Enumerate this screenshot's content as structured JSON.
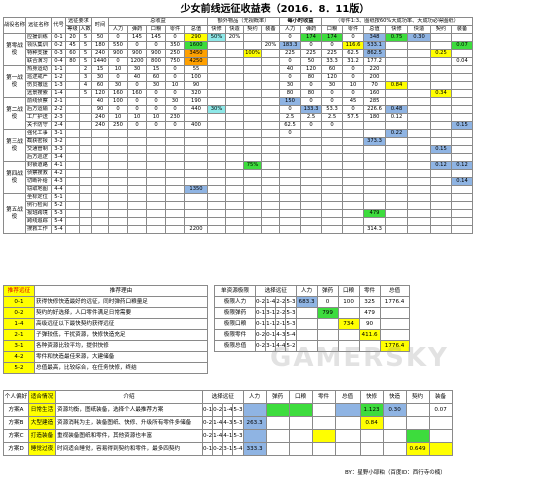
{
  "title": "少女前线远征收益表（2016．8．11版）",
  "main_table": {
    "header_top": [
      "战役名称",
      "远征名称",
      "代号",
      "远征要求",
      "",
      "时间",
      "总收益",
      "额外物品",
      "每小时收益",
      "总值",
      "筹奖比",
      "",
      ""
    ],
    "group_labels": {
      "req": "远征要求",
      "total": "总收益",
      "extra": "额外物品（无视概率）",
      "hourly": "每小时收益",
      "note": "（零件1:3、图纸按60%大成功率、大成功必得图纸）"
    },
    "header_sub": [
      "等级",
      "人数",
      "",
      "人力",
      "弹药",
      "口粮",
      "零件",
      "快修",
      "快造",
      "契约",
      "装备",
      "人力",
      "弹药",
      "口粮",
      "零件",
      "总值",
      "快修",
      "快造",
      "契约",
      "装备"
    ],
    "rows": [
      {
        "campaign": "第零战役",
        "name": "应援训练",
        "code": "0-1",
        "lv": "20",
        "ppl": "5",
        "time": "50",
        "p": "0",
        "a": "145",
        "r": "145",
        "s": "0",
        "total": "290",
        "e1": "50%",
        "e2": "20%",
        "e3": "",
        "e4": "",
        "h1": "0",
        "h2": "174",
        "h3": "174",
        "h4": "0",
        "hv": "348",
        "h5": "0.75",
        "h6": "0.30",
        "h7": "",
        "h8": ""
      },
      {
        "campaign": "",
        "name": "领队集训",
        "code": "0-2",
        "lv": "45",
        "ppl": "5",
        "time": "180",
        "p": "550",
        "a": "0",
        "r": "0",
        "s": "350",
        "total": "1600",
        "e1": "",
        "e2": "",
        "e3": "",
        "e4": "20%",
        "h1": "183.3",
        "h2": "0",
        "h3": "0",
        "h4": "116.6",
        "hv": "533.1",
        "h5": "",
        "h6": "",
        "h7": "",
        "h8": "0.07"
      },
      {
        "campaign": "",
        "name": "特种支援",
        "code": "0-3",
        "lv": "60",
        "ppl": "5",
        "time": "240",
        "p": "900",
        "a": "900",
        "r": "900",
        "s": "250",
        "total": "3450",
        "e1": "",
        "e2": "",
        "e3": "100%",
        "e4": "",
        "h1": "225",
        "h2": "225",
        "h3": "225",
        "h4": "62.5",
        "hv": "862.5",
        "h5": "",
        "h6": "",
        "h7": "0.25",
        "h8": ""
      },
      {
        "campaign": "",
        "name": "联合演习",
        "code": "0-4",
        "lv": "80",
        "ppl": "5",
        "time": "1440",
        "p": "0",
        "a": "1200",
        "r": "800",
        "s": "750",
        "total": "4250",
        "e1": "",
        "e2": "",
        "e3": "",
        "e4": "",
        "h1": "0",
        "h2": "50",
        "h3": "33.3",
        "h4": "31.2",
        "hv": "177.2",
        "h5": "",
        "h6": "",
        "h7": "",
        "h8": "0.04"
      },
      {
        "campaign": "第一战役",
        "name": "热身运动",
        "code": "1-1",
        "lv": "",
        "ppl": "2",
        "time": "15",
        "p": "10",
        "a": "30",
        "r": "15",
        "s": "0",
        "total": "55",
        "e1": "",
        "e2": "",
        "e3": "",
        "e4": "",
        "h1": "40",
        "h2": "120",
        "h3": "60",
        "h4": "0",
        "hv": "220",
        "h5": "",
        "h6": "",
        "h7": "",
        "h8": ""
      },
      {
        "campaign": "",
        "name": "巡逻戒严",
        "code": "1-2",
        "lv": "",
        "ppl": "3",
        "time": "30",
        "p": "0",
        "a": "40",
        "r": "60",
        "s": "0",
        "total": "100",
        "e1": "",
        "e2": "",
        "e3": "",
        "e4": "",
        "h1": "0",
        "h2": "80",
        "h3": "120",
        "h4": "0",
        "hv": "200",
        "h5": "",
        "h6": "",
        "h7": "",
        "h8": ""
      },
      {
        "campaign": "",
        "name": "伤员撤运",
        "code": "1-3",
        "lv": "",
        "ppl": "4",
        "time": "60",
        "p": "30",
        "a": "0",
        "r": "30",
        "s": "10",
        "total": "90",
        "e1": "",
        "e2": "",
        "e3": "",
        "e4": "",
        "h1": "30",
        "h2": "0",
        "h3": "30",
        "h4": "10",
        "hv": "70",
        "h5": "0.84",
        "h6": "",
        "h7": "",
        "h8": ""
      },
      {
        "campaign": "",
        "name": "远景搜索",
        "code": "1-4",
        "lv": "",
        "ppl": "5",
        "time": "120",
        "p": "160",
        "a": "160",
        "r": "0",
        "s": "0",
        "total": "320",
        "e1": "",
        "e2": "",
        "e3": "",
        "e4": "",
        "h1": "80",
        "h2": "80",
        "h3": "0",
        "h4": "0",
        "hv": "160",
        "h5": "",
        "h6": "",
        "h7": "0.34",
        "h8": ""
      },
      {
        "campaign": "第二战役",
        "name": "前线侦察",
        "code": "2-1",
        "lv": "",
        "ppl": "",
        "time": "40",
        "p": "100",
        "a": "0",
        "r": "0",
        "s": "30",
        "total": "190",
        "e1": "",
        "e2": "",
        "e3": "",
        "e4": "",
        "h1": "150",
        "h2": "0",
        "h3": "0",
        "h4": "45",
        "hv": "285",
        "h5": "",
        "h6": "",
        "h7": "",
        "h8": ""
      },
      {
        "campaign": "",
        "name": "后方运输",
        "code": "2-2",
        "lv": "",
        "ppl": "",
        "time": "90",
        "p": "0",
        "a": "0",
        "r": "0",
        "s": "0",
        "total": "440",
        "e1": "30%",
        "e2": "",
        "e3": "",
        "e4": "",
        "h1": "0",
        "h2": "133.3",
        "h3": "53.3",
        "h4": "0",
        "hv": "226.6",
        "h5": "0.48",
        "h6": "",
        "h7": "",
        "h8": ""
      },
      {
        "campaign": "",
        "name": "工厂护送",
        "code": "2-3",
        "lv": "",
        "ppl": "",
        "time": "240",
        "p": "10",
        "a": "10",
        "r": "10",
        "s": "230",
        "total": "",
        "e1": "",
        "e2": "",
        "e3": "",
        "e4": "",
        "h1": "2.5",
        "h2": "2.5",
        "h3": "2.5",
        "h4": "57.5",
        "hv": "180",
        "h5": "0.12",
        "h6": "",
        "h7": "",
        "h8": ""
      },
      {
        "campaign": "",
        "name": "关卡防守",
        "code": "2-4",
        "lv": "",
        "ppl": "",
        "time": "240",
        "p": "250",
        "a": "0",
        "r": "0",
        "s": "0",
        "total": "400",
        "e1": "",
        "e2": "",
        "e3": "",
        "e4": "",
        "h1": "62.5",
        "h2": "0",
        "h3": "0",
        "h4": "",
        "hv": "",
        "h5": "",
        "h6": "",
        "h7": "",
        "h8": "0.15"
      },
      {
        "campaign": "第三战役",
        "name": "强化工事",
        "code": "3-1",
        "lv": "",
        "ppl": "",
        "time": "",
        "p": "",
        "a": "",
        "r": "",
        "s": "",
        "total": "",
        "e1": "",
        "e2": "",
        "e3": "",
        "e4": "",
        "h1": "0",
        "h2": "",
        "h3": "",
        "h4": "",
        "hv": "",
        "h5": "0.22",
        "h6": "",
        "h7": "",
        "h8": ""
      },
      {
        "campaign": "",
        "name": "截获密报",
        "code": "3-2",
        "lv": "",
        "ppl": "",
        "time": "",
        "p": "",
        "a": "",
        "r": "",
        "s": "",
        "total": "",
        "e1": "",
        "e2": "",
        "e3": "",
        "e4": "",
        "h1": "",
        "h2": "",
        "h3": "",
        "h4": "",
        "hv": "373.3",
        "h5": "",
        "h6": "",
        "h7": "",
        "h8": ""
      },
      {
        "campaign": "",
        "name": "交通管制",
        "code": "3-3",
        "lv": "",
        "ppl": "",
        "time": "",
        "p": "",
        "a": "",
        "r": "",
        "s": "",
        "total": "",
        "e1": "",
        "e2": "",
        "e3": "",
        "e4": "",
        "h1": "",
        "h2": "",
        "h3": "",
        "h4": "",
        "hv": "",
        "h5": "",
        "h6": "",
        "h7": "0.15",
        "h8": ""
      },
      {
        "campaign": "",
        "name": "后方巡逻",
        "code": "3-4",
        "lv": "",
        "ppl": "",
        "time": "",
        "p": "",
        "a": "",
        "r": "",
        "s": "",
        "total": "",
        "e1": "",
        "e2": "",
        "e3": "",
        "e4": "",
        "h1": "",
        "h2": "",
        "h3": "",
        "h4": "",
        "hv": "",
        "h5": "",
        "h6": "",
        "h7": "",
        "h8": ""
      },
      {
        "campaign": "第四战役",
        "name": "封锁道路",
        "code": "4-1",
        "lv": "",
        "ppl": "",
        "time": "",
        "p": "",
        "a": "",
        "r": "",
        "s": "",
        "total": "",
        "e1": "",
        "e2": "",
        "e3": "75%",
        "e4": "",
        "h1": "",
        "h2": "",
        "h3": "",
        "h4": "",
        "hv": "",
        "h5": "",
        "h6": "",
        "h7": "0.12",
        "h8": "0.12"
      },
      {
        "campaign": "",
        "name": "侦察搜救",
        "code": "4-2",
        "lv": "",
        "ppl": "",
        "time": "",
        "p": "",
        "a": "",
        "r": "",
        "s": "",
        "total": "",
        "e1": "",
        "e2": "",
        "e3": "",
        "e4": "",
        "h1": "",
        "h2": "",
        "h3": "",
        "h4": "",
        "hv": "",
        "h5": "",
        "h6": "",
        "h7": "",
        "h8": ""
      },
      {
        "campaign": "",
        "name": "切断补给",
        "code": "4-3",
        "lv": "",
        "ppl": "",
        "time": "",
        "p": "",
        "a": "",
        "r": "",
        "s": "",
        "total": "",
        "e1": "",
        "e2": "",
        "e3": "",
        "e4": "",
        "h1": "",
        "h2": "",
        "h3": "",
        "h4": "",
        "hv": "",
        "h5": "",
        "h6": "",
        "h7": "",
        "h8": "0.14"
      },
      {
        "campaign": "",
        "name": "窃取地图",
        "code": "4-4",
        "lv": "",
        "ppl": "",
        "time": "",
        "p": "",
        "a": "",
        "r": "",
        "s": "",
        "total": "1350",
        "e1": "",
        "e2": "",
        "e3": "",
        "e4": "",
        "h1": "",
        "h2": "",
        "h3": "",
        "h4": "",
        "hv": "",
        "h5": "",
        "h6": "",
        "h7": "",
        "h8": ""
      },
      {
        "campaign": "第五战役",
        "name": "坐标定位",
        "code": "5-1",
        "lv": "",
        "ppl": "",
        "time": "",
        "p": "",
        "a": "",
        "r": "",
        "s": "",
        "total": "",
        "e1": "",
        "e2": "",
        "e3": "",
        "e4": "",
        "h1": "",
        "h2": "",
        "h3": "",
        "h4": "",
        "hv": "",
        "h5": "",
        "h6": "",
        "h7": "",
        "h8": ""
      },
      {
        "campaign": "",
        "name": "例行检阅",
        "code": "5-2",
        "lv": "",
        "ppl": "",
        "time": "",
        "p": "",
        "a": "",
        "r": "",
        "s": "",
        "total": "",
        "e1": "",
        "e2": "",
        "e3": "",
        "e4": "",
        "h1": "",
        "h2": "",
        "h3": "",
        "h4": "",
        "hv": "",
        "h5": "",
        "h6": "",
        "h7": "",
        "h8": ""
      },
      {
        "campaign": "",
        "name": "报班跨境",
        "code": "5-3",
        "lv": "",
        "ppl": "",
        "time": "",
        "p": "",
        "a": "",
        "r": "",
        "s": "",
        "total": "",
        "e1": "",
        "e2": "",
        "e3": "",
        "e4": "",
        "h1": "",
        "h2": "",
        "h3": "",
        "h4": "",
        "hv": "479",
        "h5": "",
        "h6": "",
        "h7": "",
        "h8": ""
      },
      {
        "campaign": "",
        "name": "跨线追踪",
        "code": "5-4",
        "lv": "",
        "ppl": "",
        "time": "",
        "p": "",
        "a": "",
        "r": "",
        "s": "",
        "total": "",
        "e1": "",
        "e2": "",
        "e3": "",
        "e4": "",
        "h1": "",
        "h2": "",
        "h3": "",
        "h4": "",
        "hv": "",
        "h5": "",
        "h6": "",
        "h7": "",
        "h8": ""
      },
      {
        "campaign": "",
        "name": "搜救工作",
        "code": "5-4",
        "lv": "",
        "ppl": "",
        "time": "",
        "p": "",
        "a": "",
        "r": "",
        "s": "",
        "total": "2200",
        "e1": "",
        "e2": "",
        "e3": "",
        "e4": "",
        "h1": "",
        "h2": "",
        "h3": "",
        "h4": "",
        "hv": "314.3",
        "h5": "",
        "h6": "",
        "h7": "",
        "h8": ""
      }
    ]
  },
  "recommend": {
    "headers": [
      "推荐远征",
      "推荐理由"
    ],
    "rows": [
      {
        "code": "0-1",
        "text": "获得快修快造最好的远征，同时弹药口粮量足"
      },
      {
        "code": "0-2",
        "text": "契约的好选择，人口零件满足日常需要"
      },
      {
        "code": "1-4",
        "text": "高级远征以下最快契约获得远征"
      },
      {
        "code": "2-1",
        "text": "子弹较低，干扰资源，快修快造充足"
      },
      {
        "code": "3-1",
        "text": "各种资源比较平均，提供快修"
      },
      {
        "code": "4-2",
        "text": "零件和快造最佳来源，大建储备"
      },
      {
        "code": "5-2",
        "text": "总值最高，比较综合，在任务快修，终结"
      }
    ]
  },
  "single": {
    "headers": [
      "单资源极限",
      "选择远征",
      "",
      "",
      "",
      "人力",
      "弹药",
      "口粮",
      "零件",
      "总值"
    ],
    "rows": [
      {
        "name": "极限人力",
        "c": [
          "0-2",
          "1-4",
          "2-2",
          "5-3"
        ],
        "v": [
          "683.3",
          "0",
          "100",
          "325",
          "1776.4"
        ]
      },
      {
        "name": "极限弹药",
        "c": [
          "0-1",
          "3-1",
          "2-2",
          "5-3"
        ],
        "v": [
          "",
          "799",
          "",
          "479",
          ""
        ]
      },
      {
        "name": "极限口粮",
        "c": [
          "0-1",
          "1-1",
          "2-1",
          "5-3"
        ],
        "v": [
          "",
          "",
          "734",
          "90",
          ""
        ]
      },
      {
        "name": "极限零件",
        "c": [
          "0-2",
          "0-1",
          "4-3",
          "5-4"
        ],
        "v": [
          "",
          "",
          "",
          "411.6",
          ""
        ]
      },
      {
        "name": "极限总值",
        "c": [
          "0-2",
          "3-1",
          "4-4",
          "5-2"
        ],
        "v": [
          "",
          "",
          "",
          "",
          "1776.4"
        ]
      }
    ]
  },
  "plans": {
    "headers": [
      "个人偏好",
      "适合情况",
      "介绍",
      "选择远征",
      "",
      "",
      "",
      "人力",
      "弹药",
      "口粮",
      "零件",
      "总值",
      "快修",
      "快造",
      "契约",
      "装备"
    ],
    "rows": [
      {
        "plan": "方案A",
        "fit": "日常生活",
        "intro": "资源均衡，图纸装备，选择个人最推荐方案",
        "c": [
          "0-1",
          "0-2",
          "1-4",
          "5-3"
        ],
        "v": [
          "",
          "",
          "",
          "",
          "",
          "1.123",
          "0.30",
          "",
          "0.07"
        ]
      },
      {
        "plan": "方案B",
        "fit": "大型建造",
        "intro": "资源消耗为主，装备图纸、快修、升级所有零件多储备",
        "c": [
          "0-2",
          "1-4",
          "4-3",
          "5-3"
        ],
        "v": [
          "263.3",
          "",
          "",
          "",
          "",
          "0.84",
          "",
          "",
          ""
        ]
      },
      {
        "plan": "方案C",
        "fit": "打造装备",
        "intro": "重视装备图纸和零件，其他资源也丰富",
        "c": [
          "0-2",
          "1-4",
          "4-1",
          "5-3"
        ],
        "v": [
          "",
          "",
          "",
          "",
          "",
          "",
          "",
          "",
          ""
        ]
      },
      {
        "plan": "方案D",
        "fit": "睡觉过夜",
        "intro": "时间适合睡觉，容易得到契约和零件，最多四契约",
        "c": [
          "0-1",
          "0-2",
          "3-1",
          "5-4"
        ],
        "v": [
          "333.3",
          "",
          "",
          "",
          "",
          "",
          "",
          "0.649",
          ""
        ]
      }
    ]
  },
  "credit": "BY：星野小耶粕（百度ID：西行寺の楠）",
  "watermark": "GAMERSKY"
}
